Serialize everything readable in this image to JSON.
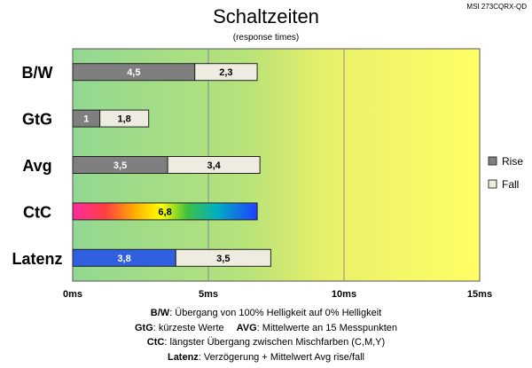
{
  "model": "MSI 273CQRX-QD",
  "chart_data": {
    "type": "bar",
    "orientation": "horizontal",
    "stacked": true,
    "title": "Schaltzeiten",
    "subtitle": "(response times)",
    "categories": [
      "B/W",
      "GtG",
      "Avg",
      "CtC",
      "Latenz"
    ],
    "series": [
      {
        "name": "Rise",
        "values": [
          4.5,
          1,
          3.5,
          null,
          null
        ]
      },
      {
        "name": "Fall",
        "values": [
          2.3,
          1.8,
          3.4,
          null,
          3.5
        ]
      }
    ],
    "single_bars": [
      {
        "category": "CtC",
        "value": 6.8,
        "fill": "rainbow"
      },
      {
        "category": "Latenz",
        "value": 3.8,
        "fill": "blue"
      }
    ],
    "x_ticks": [
      "0ms",
      "5ms",
      "10ms",
      "15ms"
    ],
    "xlim": [
      0,
      15
    ],
    "grid": true,
    "legend": "right",
    "colors": {
      "rise": "#7f7f7f",
      "fall": "#eeece1",
      "latenz": "#3060e0",
      "background_start": "#92d892",
      "background_end": "#ffff66"
    }
  },
  "notes": [
    {
      "bold": "B/W",
      "text": ":  Übergang von 100% Helligkeit auf 0% Helligkeit"
    },
    {
      "bold": "GtG",
      "text": ": kürzeste  Werte",
      "bold2": "AVG",
      "text2": ": Mittelwerte  an 15 Messpunkten"
    },
    {
      "bold": "CtC",
      "text": ": längster Übergang zwischen Mischfarben (C,M,Y)"
    },
    {
      "bold": "Latenz",
      "text": ": Verzögerung  + Mittelwert Avg rise/fall"
    }
  ]
}
